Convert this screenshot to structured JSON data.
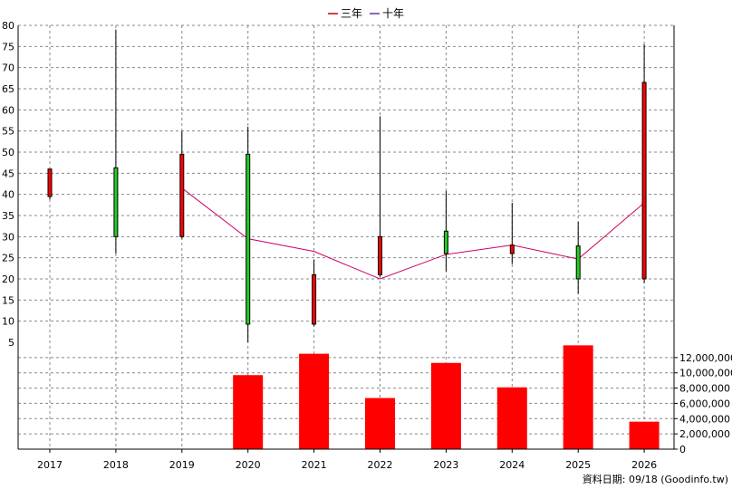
{
  "legend": [
    {
      "label": "三年",
      "color": "#cc0000"
    },
    {
      "label": "十年",
      "color": "#7030a0"
    }
  ],
  "footer": "資料日期: 09/18  (Goodinfo.tw)",
  "colors": {
    "up": "#ff0000",
    "down": "#22cc22",
    "line": "#cc0066",
    "volume": "#ff0000",
    "grid": "#888888"
  },
  "chart_data": {
    "type": "candlestick+bar",
    "x": [
      "2017",
      "2018",
      "2019",
      "2020",
      "2021",
      "2022",
      "2023",
      "2024",
      "2025",
      "2026"
    ],
    "price_axis": {
      "ticks": [
        5,
        10,
        15,
        20,
        25,
        30,
        35,
        40,
        45,
        50,
        55,
        60,
        65,
        70,
        75,
        80
      ],
      "range": [
        5,
        80
      ],
      "grid": true
    },
    "volume_axis": {
      "ticks": [
        "0",
        "2,000,000",
        "4,000,000",
        "6,000,000",
        "8,000,000",
        "10,000,000",
        "12,000,000"
      ],
      "range": [
        0,
        14000000
      ],
      "grid": true
    },
    "candles": [
      {
        "year": "2017",
        "open": 39.5,
        "close": 46.0,
        "high": 46.0,
        "low": 38.8,
        "color": "up"
      },
      {
        "year": "2018",
        "open": 46.3,
        "close": 30.0,
        "high": 79.0,
        "low": 26.0,
        "color": "down"
      },
      {
        "year": "2019",
        "open": 30.0,
        "close": 49.5,
        "high": 55.0,
        "low": 29.5,
        "color": "up"
      },
      {
        "year": "2020",
        "open": 49.5,
        "close": 9.3,
        "high": 56.0,
        "low": 5.0,
        "color": "down"
      },
      {
        "year": "2021",
        "open": 9.3,
        "close": 21.0,
        "high": 24.5,
        "low": 8.8,
        "color": "up"
      },
      {
        "year": "2022",
        "open": 21.0,
        "close": 30.0,
        "high": 58.5,
        "low": 20.5,
        "color": "up"
      },
      {
        "year": "2023",
        "open": 31.3,
        "close": 26.0,
        "high": 40.8,
        "low": 21.8,
        "color": "down"
      },
      {
        "year": "2024",
        "open": 26.0,
        "close": 28.0,
        "high": 38.0,
        "low": 23.5,
        "color": "up"
      },
      {
        "year": "2025",
        "open": 27.8,
        "close": 20.0,
        "high": 33.5,
        "low": 16.5,
        "color": "down"
      },
      {
        "year": "2026",
        "open": 20.0,
        "close": 66.5,
        "high": 75.5,
        "low": 19.0,
        "color": "up"
      }
    ],
    "average_line": {
      "x": [
        "2019",
        "2020",
        "2021",
        "2022",
        "2023",
        "2024",
        "2025",
        "2026"
      ],
      "values": [
        41.5,
        29.5,
        26.5,
        20.0,
        25.8,
        28.0,
        24.7,
        38.0
      ]
    },
    "volume": {
      "x": [
        "2020",
        "2021",
        "2022",
        "2023",
        "2024",
        "2025",
        "2026"
      ],
      "values": [
        9700000,
        12500000,
        6700000,
        11300000,
        8100000,
        13600000,
        3600000
      ]
    }
  }
}
